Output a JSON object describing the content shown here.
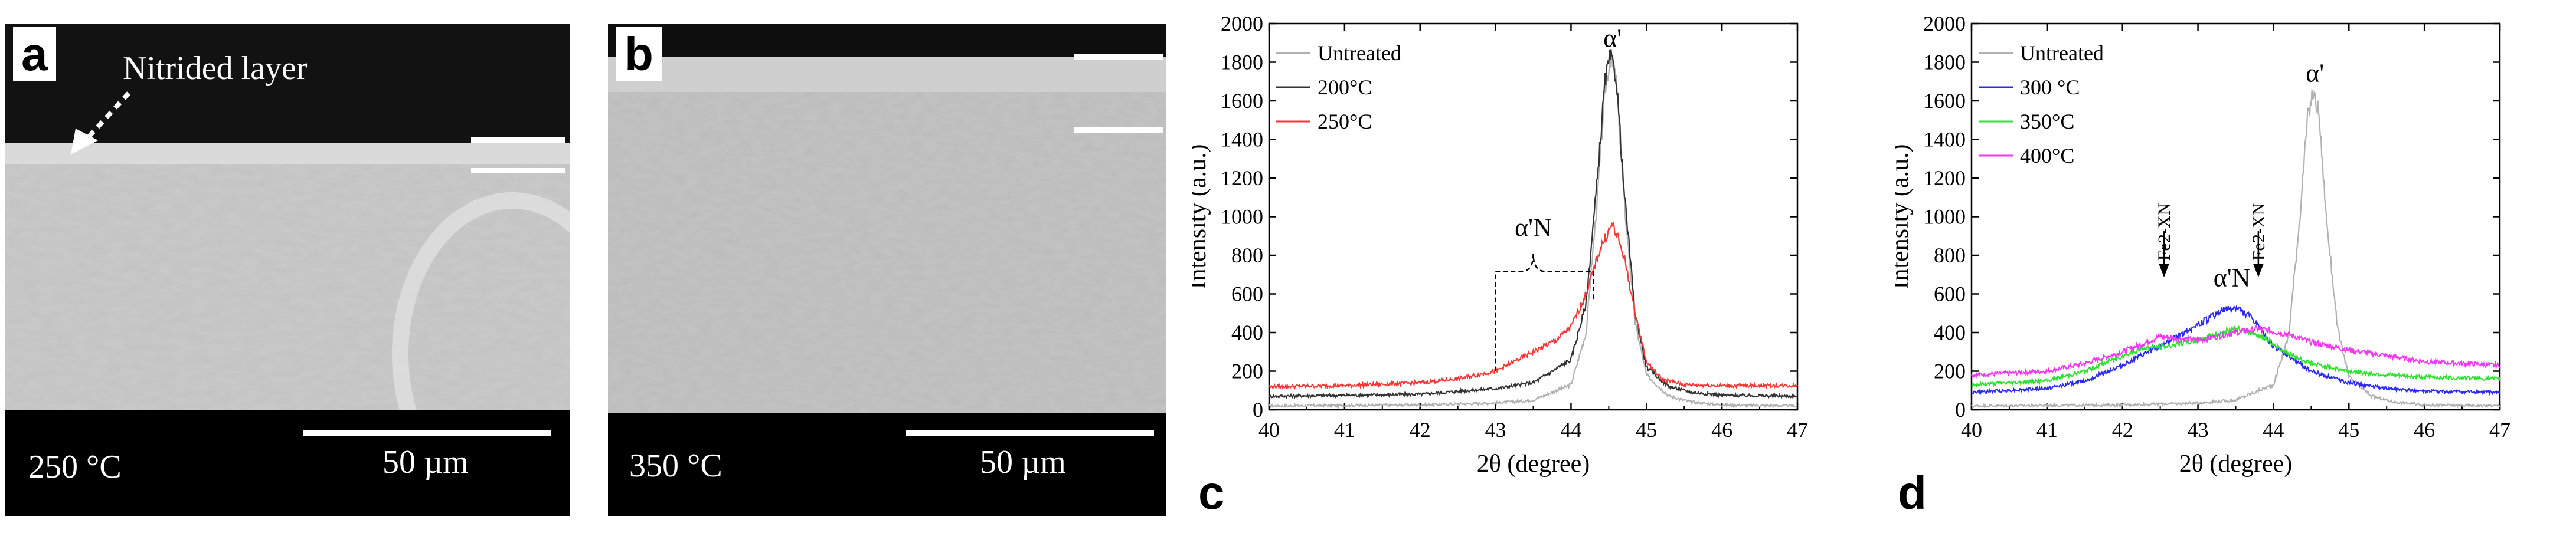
{
  "panels": {
    "a": {
      "letter": "a",
      "temperature": "250 °C",
      "annotation": "Nitrided layer",
      "scale": "50 µm"
    },
    "b": {
      "letter": "b",
      "temperature": "350 °C",
      "scale": "50 µm"
    },
    "c": {
      "letter": "c"
    },
    "d": {
      "letter": "d"
    }
  },
  "chart_data": [
    {
      "type": "line",
      "panel": "c",
      "xlabel": "2θ (degree)",
      "ylabel": "Intensity (a.u.)",
      "xlim": [
        40,
        47
      ],
      "ylim": [
        0,
        2000
      ],
      "xticks": [
        40,
        41,
        42,
        43,
        44,
        45,
        46,
        47
      ],
      "yticks": [
        0,
        200,
        400,
        600,
        800,
        1000,
        1200,
        1400,
        1600,
        1800,
        2000
      ],
      "legend_position": "top-left",
      "series": [
        {
          "name": "Untreated",
          "color": "#b0b0b0",
          "baseline": 20,
          "x": [
            40,
            42,
            43,
            43.5,
            44,
            44.2,
            44.35,
            44.45,
            44.52,
            44.6,
            44.7,
            44.85,
            45,
            45.3,
            45.6,
            46,
            47
          ],
          "y": [
            20,
            25,
            35,
            50,
            130,
            400,
            1100,
            1650,
            1820,
            1700,
            1100,
            450,
            180,
            70,
            40,
            25,
            20
          ]
        },
        {
          "name": "200°C",
          "color": "#333333",
          "baseline": 70,
          "x": [
            40,
            42,
            43,
            43.5,
            44,
            44.2,
            44.35,
            44.45,
            44.52,
            44.6,
            44.7,
            44.85,
            45,
            45.3,
            45.6,
            46,
            47
          ],
          "y": [
            70,
            80,
            110,
            140,
            260,
            550,
            1200,
            1700,
            1830,
            1720,
            1150,
            500,
            220,
            120,
            90,
            75,
            70
          ]
        },
        {
          "name": "250°C",
          "color": "#f03a3a",
          "baseline": 120,
          "x": [
            40,
            41,
            42,
            42.5,
            43,
            43.5,
            43.8,
            44,
            44.2,
            44.4,
            44.55,
            44.7,
            44.85,
            45,
            45.2,
            45.5,
            46,
            47
          ],
          "y": [
            120,
            125,
            140,
            160,
            200,
            300,
            360,
            430,
            600,
            850,
            960,
            800,
            500,
            250,
            160,
            130,
            125,
            125
          ]
        }
      ],
      "annotations": [
        {
          "text": "α'",
          "x": 44.55,
          "y": 1880
        },
        {
          "text": "α'N",
          "x": 43.5,
          "y": 900,
          "bracket": [
            43.0,
            44.3
          ]
        }
      ]
    },
    {
      "type": "line",
      "panel": "d",
      "xlabel": "2θ (degree)",
      "ylabel": "Intensity (a.u.)",
      "xlim": [
        40,
        47
      ],
      "ylim": [
        0,
        2000
      ],
      "xticks": [
        40,
        41,
        42,
        43,
        44,
        45,
        46,
        47
      ],
      "yticks": [
        0,
        200,
        400,
        600,
        800,
        1000,
        1200,
        1400,
        1600,
        1800,
        2000
      ],
      "legend_position": "top-left",
      "series": [
        {
          "name": "Untreated",
          "color": "#b0b0b0",
          "x": [
            40,
            42,
            43,
            43.5,
            44,
            44.2,
            44.35,
            44.45,
            44.52,
            44.6,
            44.7,
            44.85,
            45,
            45.3,
            45.6,
            46,
            47
          ],
          "y": [
            20,
            25,
            35,
            50,
            130,
            380,
            1000,
            1500,
            1640,
            1550,
            1000,
            420,
            170,
            70,
            40,
            25,
            20
          ]
        },
        {
          "name": "300 °C",
          "color": "#2a2af0",
          "x": [
            40,
            41,
            41.5,
            42,
            42.5,
            43,
            43.3,
            43.5,
            43.7,
            44,
            44.5,
            45,
            45.5,
            46,
            47
          ],
          "y": [
            90,
            110,
            150,
            230,
            330,
            440,
            510,
            530,
            480,
            330,
            200,
            140,
            110,
            95,
            90
          ]
        },
        {
          "name": "350°C",
          "color": "#33e033",
          "x": [
            40,
            41,
            41.5,
            42,
            42.3,
            42.6,
            43,
            43.5,
            43.8,
            44.2,
            44.5,
            45,
            45.5,
            46,
            47
          ],
          "y": [
            130,
            150,
            200,
            280,
            320,
            330,
            360,
            420,
            390,
            290,
            240,
            200,
            180,
            170,
            160
          ]
        },
        {
          "name": "400°C",
          "color": "#f03af0",
          "x": [
            40,
            41,
            41.5,
            42,
            42.5,
            43,
            43.5,
            43.8,
            44.2,
            44.5,
            45,
            45.5,
            46,
            47
          ],
          "y": [
            180,
            200,
            240,
            300,
            380,
            360,
            400,
            420,
            390,
            350,
            310,
            280,
            250,
            230
          ]
        }
      ],
      "annotations": [
        {
          "text": "α'",
          "x": 44.55,
          "y": 1700
        },
        {
          "text": "α'N",
          "x": 43.45,
          "y": 640
        },
        {
          "text": "Fe2-XN",
          "x": 42.55,
          "y": 650
        },
        {
          "text": "Fe2-XN",
          "x": 43.8,
          "y": 650
        }
      ]
    }
  ]
}
